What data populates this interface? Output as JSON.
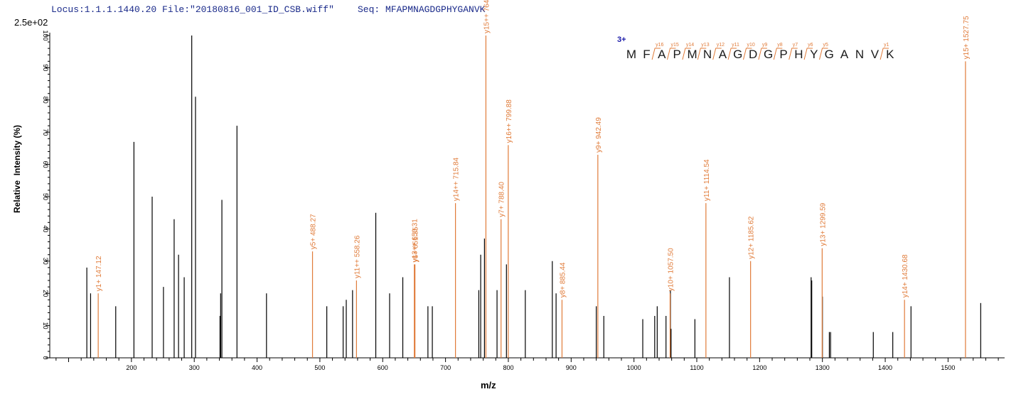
{
  "header": {
    "locus": "Locus:1.1.1.1440.20 File:\"20180816_001_ID_CSB.wiff\"",
    "seq": "Seq: MFAPMNAGDGPHYGANVK"
  },
  "scale_label": "2.5e+02",
  "charge_label": "3+",
  "chart_data": {
    "type": "bar",
    "xlabel": "m/z",
    "ylabel": "Relative  Intensity (%)",
    "xlim": [
      70,
      1590
    ],
    "ylim": [
      0,
      100
    ],
    "x_ticks": [
      "200",
      "300",
      "400",
      "500",
      "600",
      "700",
      "800",
      "900",
      "1000",
      "1100",
      "1200",
      "1300",
      "1400",
      "1500"
    ],
    "y_ticks": [
      "0",
      "10",
      "20",
      "30",
      "40",
      "50",
      "60",
      "70",
      "80",
      "90",
      "100"
    ],
    "unlabeled_peaks": [
      [
        129,
        28
      ],
      [
        135,
        20
      ],
      [
        175,
        16
      ],
      [
        204,
        67
      ],
      [
        233,
        50
      ],
      [
        251,
        22
      ],
      [
        268,
        43
      ],
      [
        275,
        32
      ],
      [
        284,
        25
      ],
      [
        296,
        100
      ],
      [
        302,
        81
      ],
      [
        341,
        13
      ],
      [
        342,
        20
      ],
      [
        344,
        49
      ],
      [
        368,
        72
      ],
      [
        415,
        20
      ],
      [
        511,
        16
      ],
      [
        537,
        16
      ],
      [
        542,
        18
      ],
      [
        552,
        21
      ],
      [
        589,
        45
      ],
      [
        611,
        20
      ],
      [
        632,
        25
      ],
      [
        672,
        16
      ],
      [
        679,
        16
      ],
      [
        753,
        21
      ],
      [
        756,
        32
      ],
      [
        762,
        37
      ],
      [
        782,
        21
      ],
      [
        797,
        29
      ],
      [
        827,
        21
      ],
      [
        870,
        30
      ],
      [
        876,
        20
      ],
      [
        940,
        16
      ],
      [
        952,
        13
      ],
      [
        1014,
        12
      ],
      [
        1033,
        13
      ],
      [
        1037,
        16
      ],
      [
        1051,
        13
      ],
      [
        1058,
        21
      ],
      [
        1059,
        9
      ],
      [
        1097,
        12
      ],
      [
        1152,
        25
      ],
      [
        1282,
        25
      ],
      [
        1283,
        24
      ],
      [
        1300,
        19
      ],
      [
        1311,
        8
      ],
      [
        1313,
        8
      ],
      [
        1381,
        8
      ],
      [
        1412,
        8
      ],
      [
        1441,
        16
      ],
      [
        1552,
        17
      ]
    ],
    "labeled_peaks": [
      {
        "mz": 147.12,
        "intensity": 20,
        "label": "y1+ 147.12"
      },
      {
        "mz": 488.27,
        "intensity": 33,
        "label": "y5+ 488.27"
      },
      {
        "mz": 558.26,
        "intensity": 24,
        "label": "y11++ 558.26"
      },
      {
        "mz": 650.31,
        "intensity": 29,
        "label": "y13++ 650.31"
      },
      {
        "mz": 651.35,
        "intensity": 29,
        "label": "y6+ 651.35"
      },
      {
        "mz": 715.84,
        "intensity": 48,
        "label": "y14++ 715.84"
      },
      {
        "mz": 764.3,
        "intensity": 100,
        "label": "y15++ 764.3"
      },
      {
        "mz": 788.4,
        "intensity": 43,
        "label": "y7+ 788.40"
      },
      {
        "mz": 799.88,
        "intensity": 66,
        "label": "y16++ 799.88"
      },
      {
        "mz": 885.44,
        "intensity": 18,
        "label": "y8+ 885.44"
      },
      {
        "mz": 942.49,
        "intensity": 63,
        "label": "y9+ 942.49"
      },
      {
        "mz": 1057.5,
        "intensity": 20,
        "label": "y10+ 1057.50"
      },
      {
        "mz": 1114.54,
        "intensity": 48,
        "label": "y11+ 1114.54"
      },
      {
        "mz": 1185.62,
        "intensity": 30,
        "label": "y12+ 1185.62"
      },
      {
        "mz": 1299.59,
        "intensity": 34,
        "label": "y13+ 1299.59"
      },
      {
        "mz": 1430.68,
        "intensity": 18,
        "label": "y14+ 1430.68"
      },
      {
        "mz": 1527.75,
        "intensity": 92,
        "label": "y15+ 1527.75"
      }
    ]
  },
  "sequence": {
    "residues": [
      "M",
      "F",
      "A",
      "P",
      "M",
      "N",
      "A",
      "G",
      "D",
      "G",
      "P",
      "H",
      "Y",
      "G",
      "A",
      "N",
      "V",
      "K"
    ],
    "fragments": [
      {
        "after": 2,
        "label": "y16"
      },
      {
        "after": 3,
        "label": "y15"
      },
      {
        "after": 4,
        "label": "y14"
      },
      {
        "after": 5,
        "label": "y13"
      },
      {
        "after": 6,
        "label": "y12"
      },
      {
        "after": 7,
        "label": "y11"
      },
      {
        "after": 8,
        "label": "y10"
      },
      {
        "after": 9,
        "label": "y9"
      },
      {
        "after": 10,
        "label": "y8"
      },
      {
        "after": 11,
        "label": "y7"
      },
      {
        "after": 12,
        "label": "y6"
      },
      {
        "after": 13,
        "label": "y5"
      },
      {
        "after": 17,
        "label": "y1"
      }
    ]
  },
  "colors": {
    "unlabeled_peak": "#000000",
    "labeled_peak": "#e07b39",
    "header_text": "#1a2a8a",
    "charge_text": "#1a1aa8"
  }
}
